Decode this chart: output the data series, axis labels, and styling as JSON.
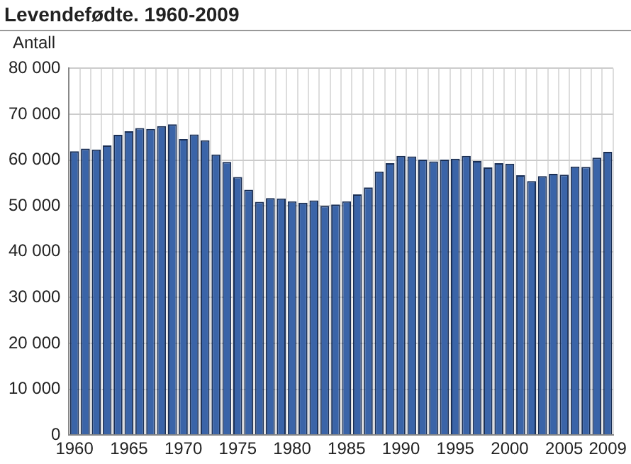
{
  "chart_data": {
    "type": "bar",
    "title": "Levendefødte. 1960-2009",
    "ylabel": "Antall",
    "categories": [
      "1960",
      null,
      null,
      null,
      null,
      "1965",
      null,
      null,
      null,
      null,
      "1970",
      null,
      null,
      null,
      null,
      "1975",
      null,
      null,
      null,
      null,
      "1980",
      null,
      null,
      null,
      null,
      "1985",
      null,
      null,
      null,
      null,
      "1990",
      null,
      null,
      null,
      null,
      "1995",
      null,
      null,
      null,
      null,
      "2000",
      null,
      null,
      null,
      null,
      "2005",
      null,
      null,
      null,
      "2009"
    ],
    "series": [
      {
        "color": "#3a64a8",
        "values": [
          61900,
          62500,
          62300,
          63200,
          65500,
          66300,
          67000,
          66800,
          67400,
          67800,
          64600,
          65600,
          64300,
          61200,
          59600,
          56300,
          53500,
          50900,
          51700,
          51600,
          51000,
          50700,
          51200,
          50000,
          50300,
          51000,
          52500,
          54000,
          57500,
          59300,
          60900,
          60800,
          60100,
          59700,
          60100,
          60300,
          60900,
          59800,
          58400,
          59300,
          59200,
          56700,
          55400,
          56500,
          57000,
          56800,
          58600,
          58500,
          60500,
          61800
        ]
      }
    ],
    "ylim": [
      0,
      80000
    ],
    "yticks": [
      {
        "value": 0,
        "label": "0"
      },
      {
        "value": 10000,
        "label": "10 000"
      },
      {
        "value": 20000,
        "label": "20 000"
      },
      {
        "value": 30000,
        "label": "30 000"
      },
      {
        "value": 40000,
        "label": "40 000"
      },
      {
        "value": 50000,
        "label": "50 000"
      },
      {
        "value": 60000,
        "label": "60 000"
      },
      {
        "value": 70000,
        "label": "70 000"
      },
      {
        "value": 80000,
        "label": "80 000"
      }
    ],
    "grid": true,
    "legend": false
  }
}
